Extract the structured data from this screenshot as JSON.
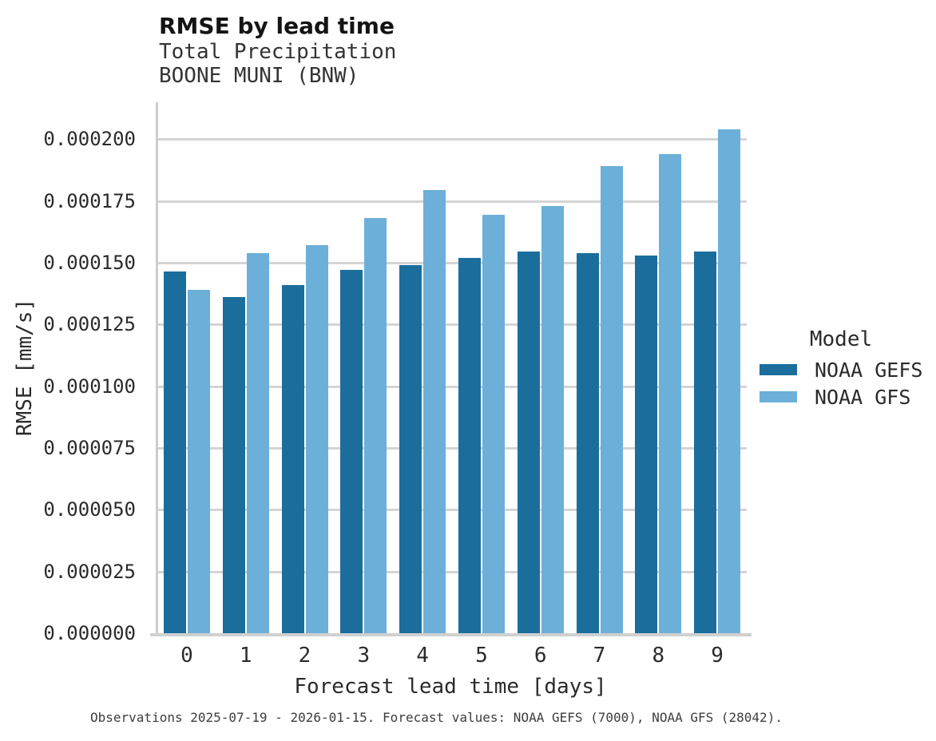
{
  "chart_data": {
    "type": "bar",
    "title": "RMSE by lead time",
    "subtitle": [
      "Total Precipitation",
      "BOONE MUNI (BNW)"
    ],
    "xlabel": "Forecast lead time [days]",
    "ylabel": "RMSE [mm/s]",
    "categories": [
      0,
      1,
      2,
      3,
      4,
      5,
      6,
      7,
      8,
      9
    ],
    "series": [
      {
        "name": "NOAA GEFS",
        "color": "#1b6e9c",
        "values": [
          0.0001465,
          0.000136,
          0.000141,
          0.000147,
          0.000149,
          0.000152,
          0.0001545,
          0.000154,
          0.000153,
          0.0001545
        ]
      },
      {
        "name": "NOAA GFS",
        "color": "#6cb0d9",
        "values": [
          0.000139,
          0.000154,
          0.000157,
          0.000168,
          0.0001795,
          0.0001695,
          0.000173,
          0.000189,
          0.000194,
          0.000204
        ]
      }
    ],
    "ylim": [
      0,
      0.000215
    ],
    "yticks": [
      0,
      2.5e-05,
      5e-05,
      7.5e-05,
      0.0001,
      0.000125,
      0.00015,
      0.000175,
      0.0002
    ],
    "ytick_labels": [
      "0.000000",
      "0.000025",
      "0.000050",
      "0.000075",
      "0.000100",
      "0.000125",
      "0.000150",
      "0.000175",
      "0.000200"
    ],
    "grid": "horizontal",
    "legend": {
      "title": "Model",
      "position": "right"
    },
    "caption": "Observations 2025-07-19 - 2026-01-15. Forecast values: NOAA GEFS (7000), NOAA GFS (28042)."
  }
}
